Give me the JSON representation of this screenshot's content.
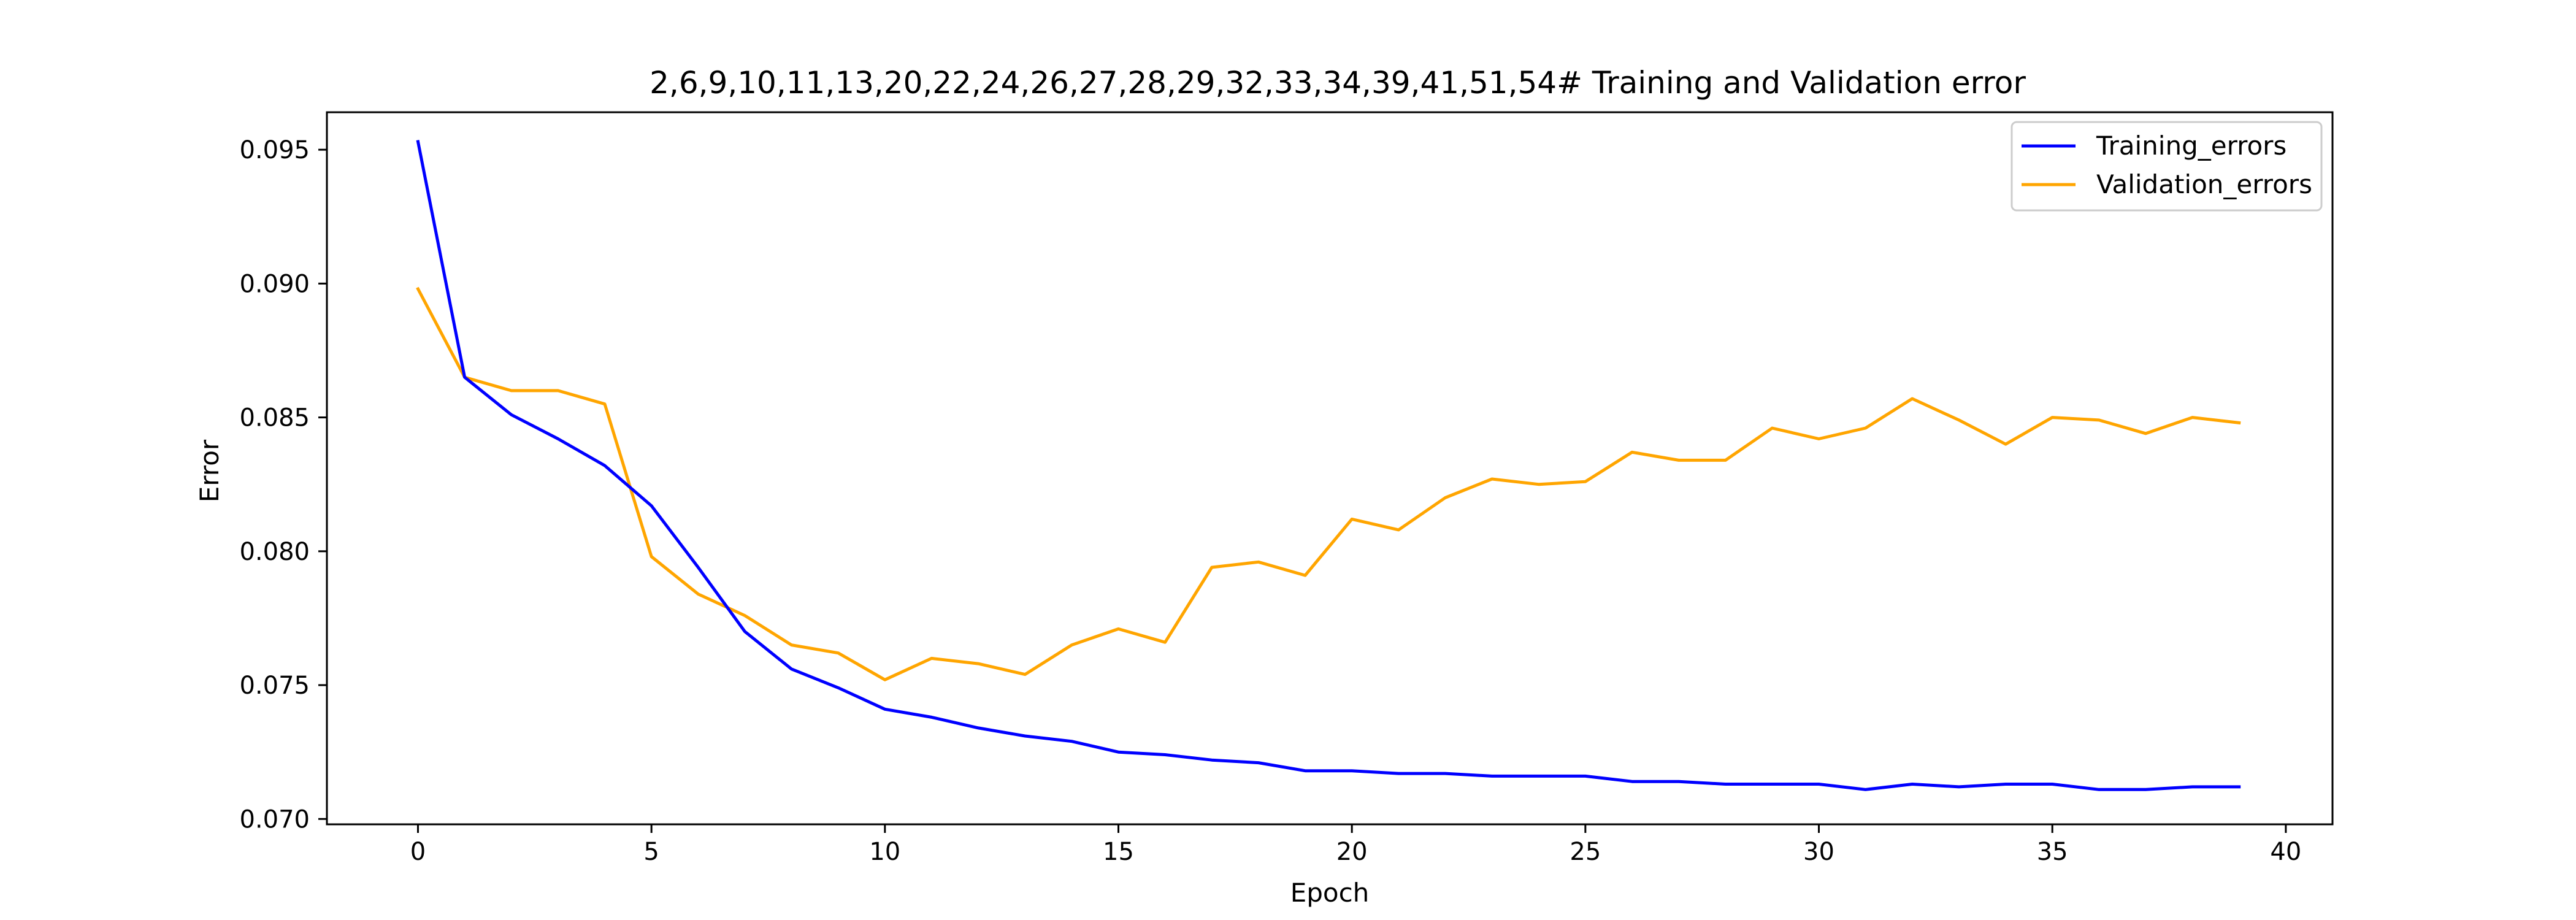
{
  "chart_data": {
    "type": "line",
    "title": "2,6,9,10,11,13,20,22,24,26,27,28,29,32,33,34,39,41,51,54# Training and Validation error",
    "xlabel": "Epoch",
    "ylabel": "Error",
    "xlim": [
      -1.95,
      41.0
    ],
    "ylim": [
      0.0698,
      0.0964
    ],
    "xticks": [
      0,
      5,
      10,
      15,
      20,
      25,
      30,
      35,
      40
    ],
    "xtick_labels": [
      "0",
      "5",
      "10",
      "15",
      "20",
      "25",
      "30",
      "35",
      "40"
    ],
    "yticks": [
      0.07,
      0.075,
      0.08,
      0.085,
      0.09,
      0.095
    ],
    "ytick_labels": [
      "0.070",
      "0.075",
      "0.080",
      "0.085",
      "0.090",
      "0.095"
    ],
    "grid": false,
    "legend_position": "top-right",
    "x": [
      0,
      1,
      2,
      3,
      4,
      5,
      6,
      7,
      8,
      9,
      10,
      11,
      12,
      13,
      14,
      15,
      16,
      17,
      18,
      19,
      20,
      21,
      22,
      23,
      24,
      25,
      26,
      27,
      28,
      29,
      30,
      31,
      32,
      33,
      34,
      35,
      36,
      37,
      38,
      39
    ],
    "series": [
      {
        "name": "Training_errors",
        "color": "#0000ff",
        "values": [
          0.0953,
          0.0865,
          0.0851,
          0.0842,
          0.0832,
          0.0817,
          0.0794,
          0.077,
          0.0756,
          0.0749,
          0.0741,
          0.0738,
          0.0734,
          0.0731,
          0.0729,
          0.0725,
          0.0724,
          0.0722,
          0.0721,
          0.0718,
          0.0718,
          0.0717,
          0.0717,
          0.0716,
          0.0716,
          0.0716,
          0.0714,
          0.0714,
          0.0713,
          0.0713,
          0.0713,
          0.0711,
          0.0713,
          0.0712,
          0.0713,
          0.0713,
          0.0711,
          0.0711,
          0.0712,
          0.0712
        ]
      },
      {
        "name": "Validation_errors",
        "color": "#ffa500",
        "values": [
          0.0898,
          0.0865,
          0.086,
          0.086,
          0.0855,
          0.0798,
          0.0784,
          0.0776,
          0.0765,
          0.0762,
          0.0752,
          0.076,
          0.0758,
          0.0754,
          0.0765,
          0.0771,
          0.0766,
          0.0794,
          0.0796,
          0.0791,
          0.0812,
          0.0808,
          0.082,
          0.0827,
          0.0825,
          0.0826,
          0.0837,
          0.0834,
          0.0834,
          0.0846,
          0.0842,
          0.0846,
          0.0857,
          0.0849,
          0.084,
          0.085,
          0.0849,
          0.0844,
          0.085,
          0.0848
        ]
      }
    ]
  }
}
